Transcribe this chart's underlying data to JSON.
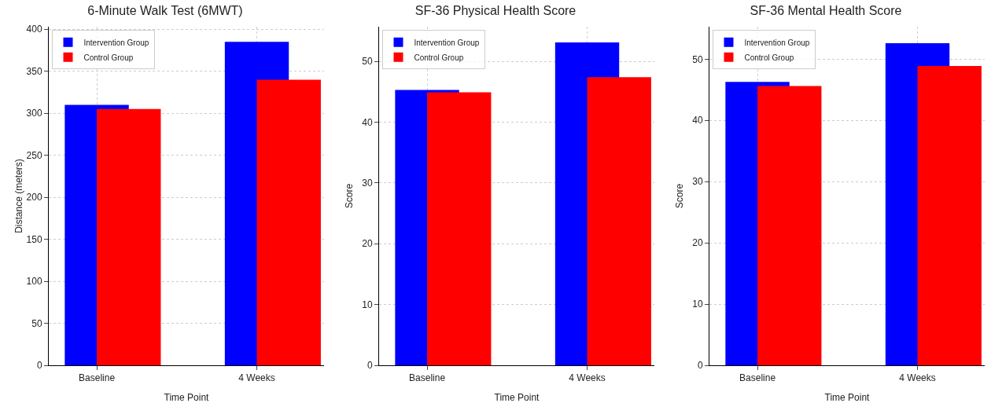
{
  "chart_data": [
    {
      "type": "bar",
      "title": "6-Minute Walk Test (6MWT)",
      "xlabel": "Time Point",
      "ylabel": "Distance (meters)",
      "categories": [
        "Baseline",
        "4 Weeks"
      ],
      "series": [
        {
          "name": "Intervention Group",
          "color": "#0000ff",
          "values": [
            310,
            385
          ]
        },
        {
          "name": "Control Group",
          "color": "#ff0000",
          "values": [
            305,
            340
          ]
        }
      ],
      "ylim": [
        0,
        403
      ],
      "yticks": [
        0,
        50,
        100,
        150,
        200,
        250,
        300,
        350,
        400
      ],
      "grid": true,
      "legend": "top left"
    },
    {
      "type": "bar",
      "title": "SF-36 Physical Health Score",
      "xlabel": "Time Point",
      "ylabel": "Score",
      "categories": [
        "Baseline",
        "4 Weeks"
      ],
      "series": [
        {
          "name": "Intervention Group",
          "color": "#0000ff",
          "values": [
            45.3,
            53.1
          ]
        },
        {
          "name": "Control Group",
          "color": "#ff0000",
          "values": [
            44.9,
            47.4
          ]
        }
      ],
      "ylim": [
        0,
        55.7
      ],
      "yticks": [
        0,
        10,
        20,
        30,
        40,
        50
      ],
      "grid": true,
      "legend": "top left"
    },
    {
      "type": "bar",
      "title": "SF-36 Mental Health Score",
      "xlabel": "Time Point",
      "ylabel": "Score",
      "categories": [
        "Baseline",
        "4 Weeks"
      ],
      "series": [
        {
          "name": "Intervention Group",
          "color": "#0000ff",
          "values": [
            46.3,
            52.6
          ]
        },
        {
          "name": "Control Group",
          "color": "#ff0000",
          "values": [
            45.6,
            48.9
          ]
        }
      ],
      "ylim": [
        0,
        55.3
      ],
      "yticks": [
        0,
        10,
        20,
        30,
        40,
        50
      ],
      "grid": true,
      "legend": "top left"
    }
  ]
}
